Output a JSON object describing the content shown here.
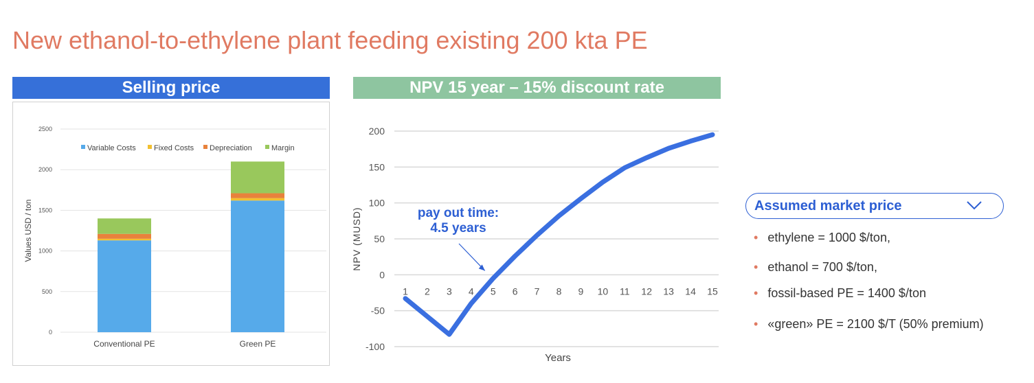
{
  "page_title": "New ethanol-to-ethylene plant feeding existing 200 kta PE",
  "colors": {
    "title": "#e07a62",
    "banner_left": "#3670d9",
    "banner_right": "#8ec5a0",
    "accent_blue": "#2d5fd3"
  },
  "chart_data": [
    {
      "type": "bar",
      "stacked": true,
      "title": "Selling price",
      "categories": [
        "Conventional PE",
        "Green PE"
      ],
      "series": [
        {
          "name": "Variable Costs",
          "color": "#56aaea",
          "values": [
            1130,
            1620
          ]
        },
        {
          "name": "Fixed Costs",
          "color": "#f2c030",
          "values": [
            20,
            30
          ]
        },
        {
          "name": "Depreciation",
          "color": "#e8823c",
          "values": [
            60,
            60
          ]
        },
        {
          "name": "Margin",
          "color": "#99c85c",
          "values": [
            190,
            390
          ]
        }
      ],
      "ylabel": "Values USD / ton",
      "xlabel": "",
      "ylim": [
        0,
        2500
      ],
      "yticks": [
        0,
        500,
        1000,
        1500,
        2000,
        2500
      ],
      "legend": "top",
      "grid": true
    },
    {
      "type": "line",
      "title": "NPV 15 year – 15% discount rate",
      "xlabel": "Years",
      "ylabel": "NPV (MUSD)",
      "x": [
        1,
        2,
        3,
        4,
        5,
        6,
        7,
        8,
        9,
        10,
        11,
        12,
        13,
        14,
        15
      ],
      "series": [
        {
          "name": "NPV",
          "color": "#3a6fe0",
          "values": [
            -33,
            -58,
            -83,
            -40,
            -5,
            26,
            55,
            82,
            106,
            129,
            149,
            163,
            176,
            186,
            195
          ]
        }
      ],
      "ylim": [
        -100,
        200
      ],
      "yticks": [
        -100,
        -50,
        0,
        50,
        100,
        150,
        200
      ],
      "grid": true,
      "annotation": {
        "text_line1": "pay out time:",
        "text_line2": "4.5 years",
        "x": 4.5,
        "y": 0
      }
    }
  ],
  "market": {
    "title": "Assumed market price",
    "items": [
      "ethylene = 1000 $/ton,",
      "ethanol = 700 $/ton,",
      "fossil-based PE = 1400 $/ton",
      "«green» PE = 2100 $/T (50% premium)"
    ]
  }
}
